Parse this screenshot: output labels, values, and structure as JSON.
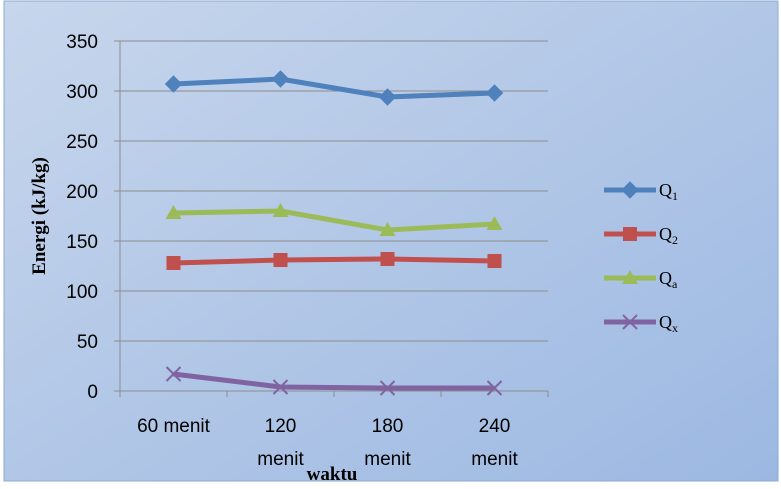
{
  "chart_data": {
    "type": "line",
    "title": "",
    "xlabel": "waktu",
    "ylabel": "Energi (kJ/kg)",
    "categories": [
      [
        "60 menit"
      ],
      [
        "120",
        "menit"
      ],
      [
        "180",
        "menit"
      ],
      [
        "240",
        "menit"
      ]
    ],
    "ylim": [
      0,
      350
    ],
    "yticks": [
      0,
      50,
      100,
      150,
      200,
      250,
      300,
      350
    ],
    "grid": true,
    "legend_position": "right",
    "series": [
      {
        "name": "Q",
        "sub": "1",
        "color": "#4f81bd",
        "marker": "diamond",
        "values": [
          307,
          312,
          294,
          298
        ]
      },
      {
        "name": "Q",
        "sub": "2",
        "color": "#c0504d",
        "marker": "square",
        "values": [
          128,
          131,
          132,
          130
        ]
      },
      {
        "name": "Q",
        "sub": "a",
        "color": "#9bbb59",
        "marker": "triangle",
        "values": [
          178,
          180,
          161,
          167
        ]
      },
      {
        "name": "Q",
        "sub": "x",
        "color": "#8064a2",
        "marker": "x",
        "values": [
          17,
          4,
          3,
          3
        ]
      }
    ]
  }
}
